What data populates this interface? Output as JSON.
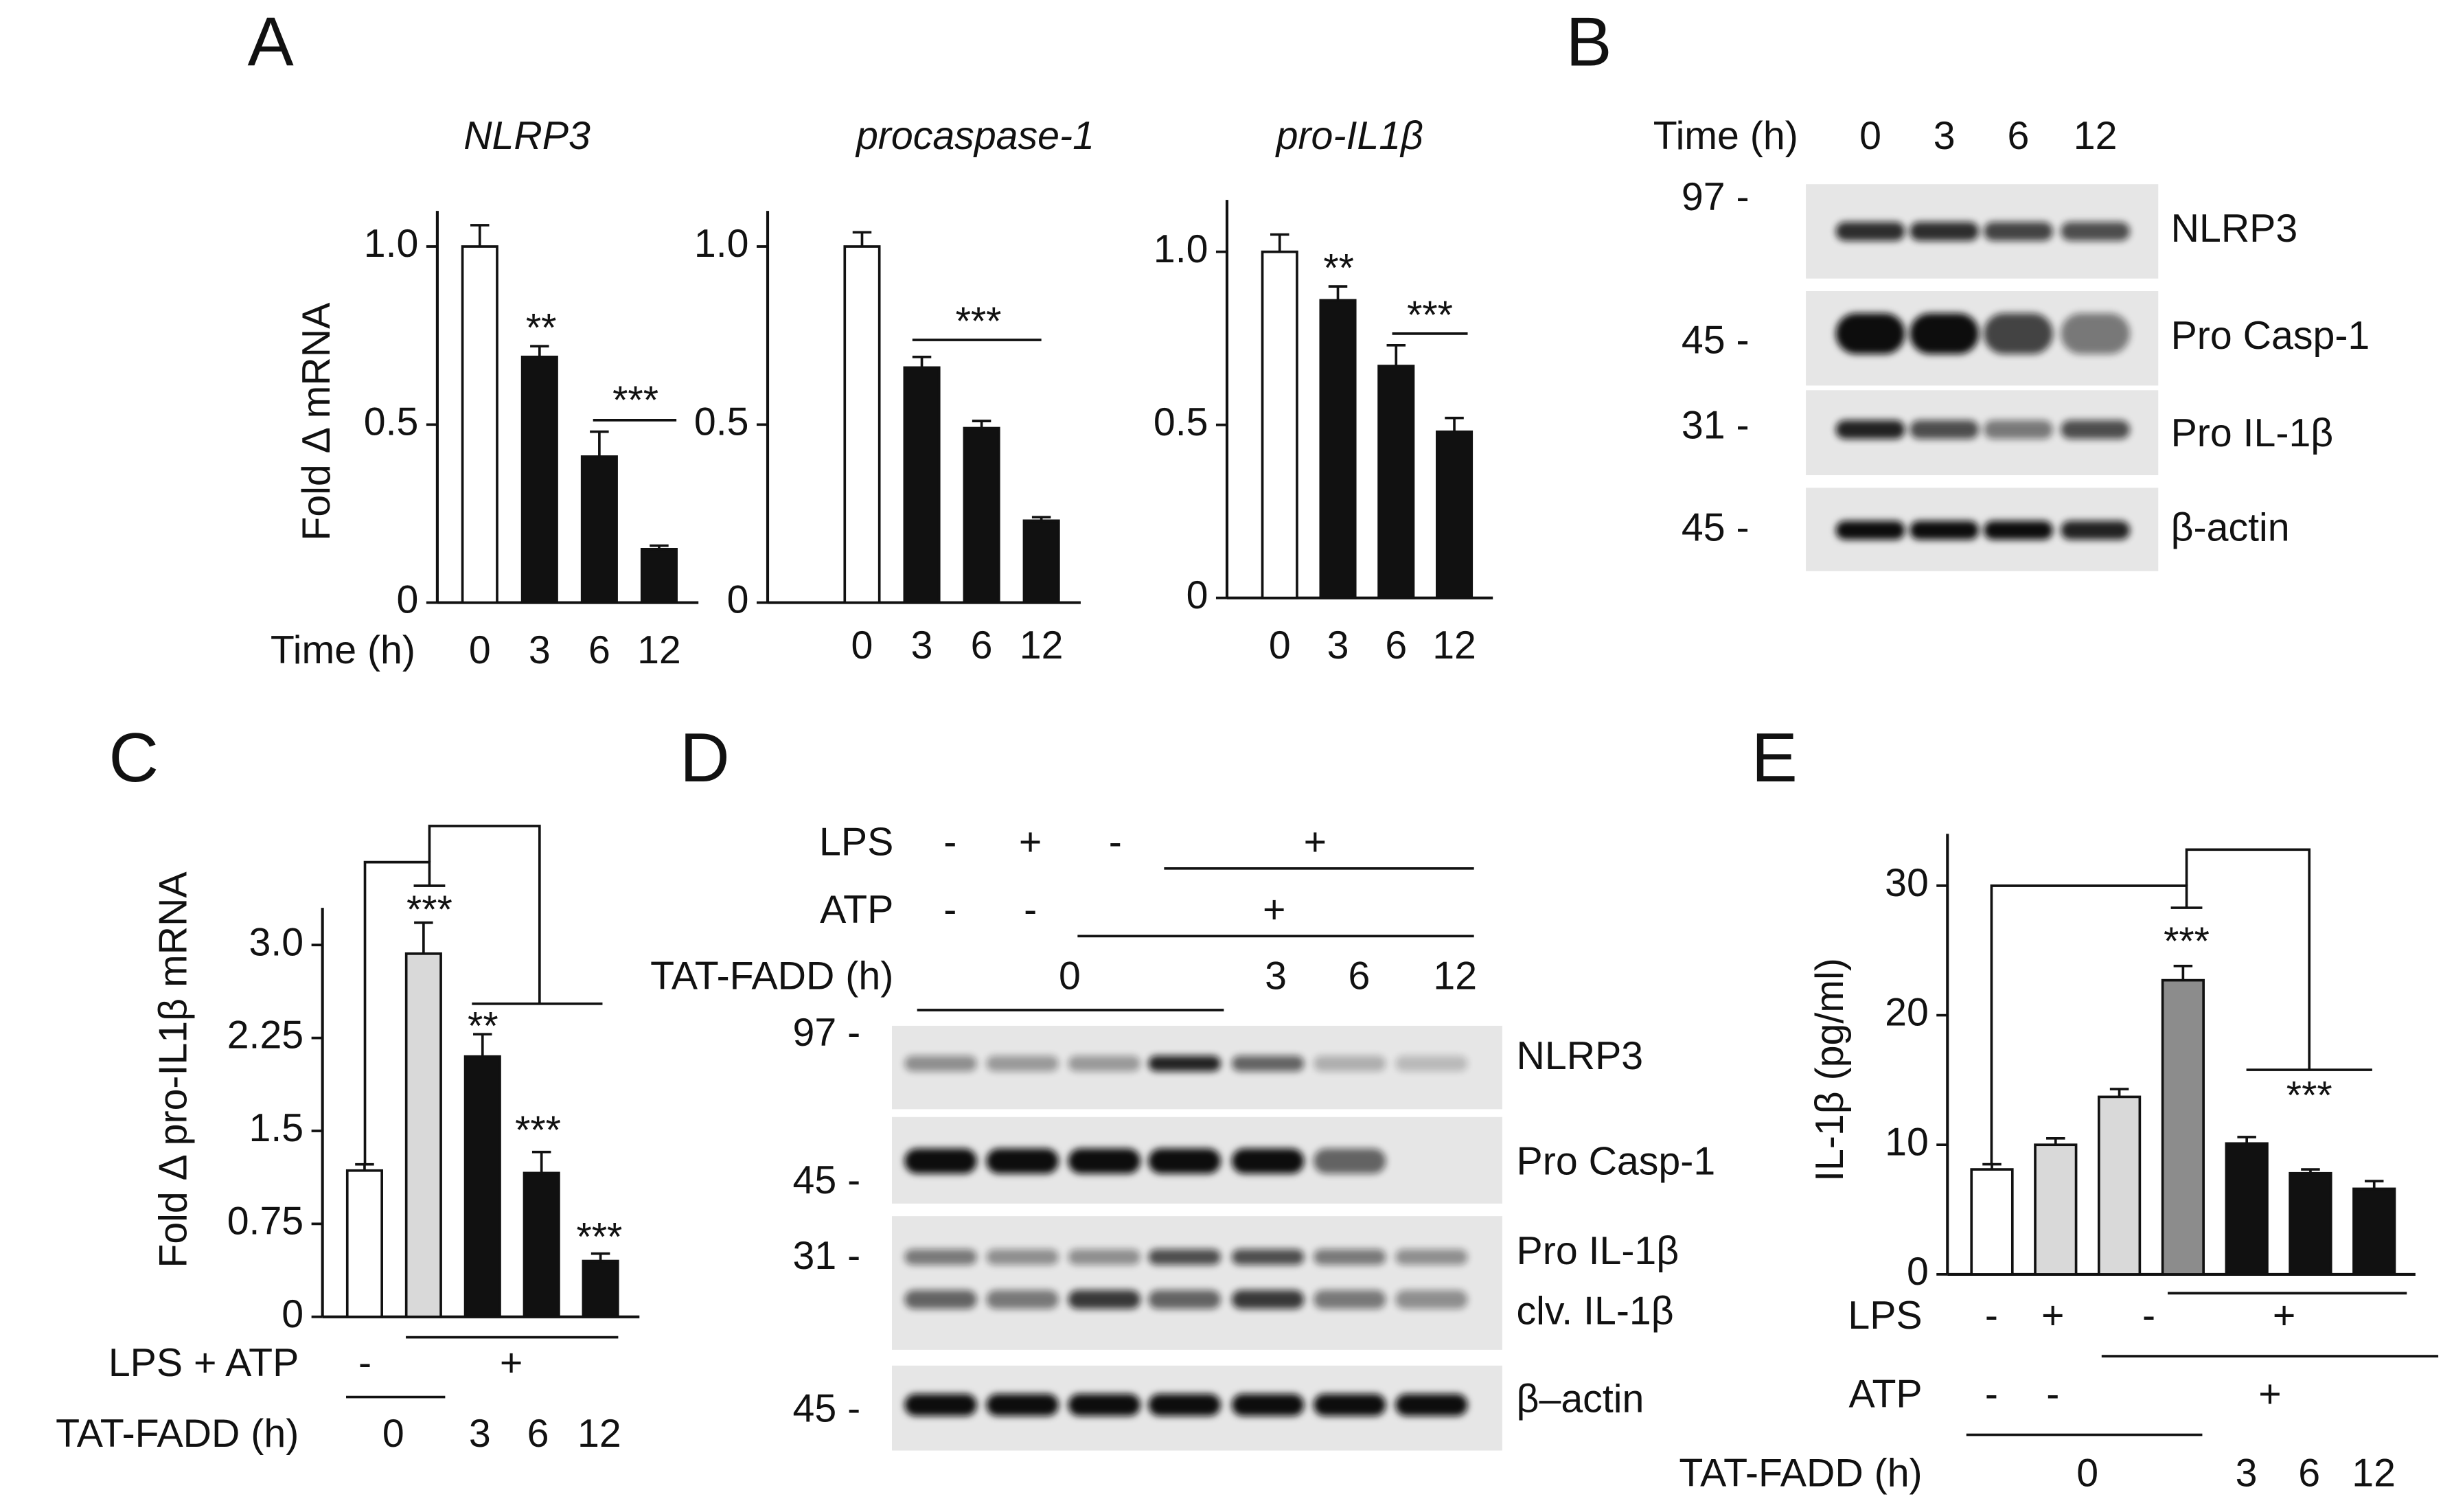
{
  "panel_labels": [
    "A",
    "B",
    "C",
    "D",
    "E"
  ],
  "chart_data": [
    {
      "type": "bar",
      "title": "NLRP3",
      "y_label": "Fold Δ mRNA",
      "x_label": "Time (h)",
      "categories": [
        "0",
        "3",
        "6",
        "12"
      ],
      "values": [
        1.0,
        0.69,
        0.41,
        0.15
      ],
      "errors": [
        0.06,
        0.03,
        0.07,
        0.01
      ],
      "colors": [
        "#ffffff",
        "#111111",
        "#111111",
        "#111111"
      ],
      "ylim": [
        0,
        1.1
      ],
      "yticks": [
        0,
        0.5,
        {
          "value": 1,
          "label": "1.0"
        }
      ],
      "annotations": [
        "**",
        "***"
      ]
    },
    {
      "type": "bar",
      "title": "procaspase-1",
      "categories": [
        "0",
        "3",
        "6",
        "12"
      ],
      "values": [
        1.0,
        0.66,
        0.49,
        0.23
      ],
      "errors": [
        0.04,
        0.03,
        0.02,
        0.01
      ],
      "colors": [
        "#ffffff",
        "#111111",
        "#111111",
        "#111111"
      ],
      "ylim": [
        0,
        1.1
      ],
      "yticks": [
        0,
        0.5,
        {
          "value": 1,
          "label": "1.0"
        }
      ],
      "annotations": [
        "***"
      ]
    },
    {
      "type": "bar",
      "title": "pro-IL1β",
      "categories": [
        "0",
        "3",
        "6",
        "12"
      ],
      "values": [
        1.0,
        0.86,
        0.67,
        0.48
      ],
      "errors": [
        0.05,
        0.04,
        0.06,
        0.04
      ],
      "colors": [
        "#ffffff",
        "#111111",
        "#111111",
        "#111111"
      ],
      "ylim": [
        0,
        1.15
      ],
      "yticks": [
        0,
        0.5,
        {
          "value": 1,
          "label": "1.0"
        }
      ],
      "annotations": [
        "**",
        "***"
      ]
    },
    {
      "type": "bar",
      "y_label": "Fold Δ pro-IL1β mRNA",
      "categories": [
        null,
        null,
        null,
        null,
        null
      ],
      "values": [
        1.18,
        2.93,
        2.1,
        1.16,
        0.45
      ],
      "errors": [
        0.05,
        0.25,
        0.18,
        0.17,
        0.06
      ],
      "colors": [
        "#ffffff",
        "#d9d9d9",
        "#111111",
        "#111111",
        "#111111"
      ],
      "ylim": [
        0,
        3.3
      ],
      "yticks": [
        0,
        0.75,
        1.5,
        2.25,
        {
          "value": 3,
          "label": "3.0"
        }
      ],
      "annotations": [
        "***",
        "**",
        "***",
        "***"
      ],
      "conditions": [
        {
          "label": "LPS + ATP",
          "values": [
            "-",
            "+"
          ]
        },
        {
          "label": "TAT-FADD (h)",
          "values": [
            "0",
            "3",
            "6",
            "12"
          ]
        }
      ]
    },
    {
      "type": "bar",
      "y_label": "IL-1β (pg/ml)",
      "categories": [
        null,
        null,
        null,
        null,
        null,
        null,
        null
      ],
      "values": [
        8.1,
        10.0,
        13.7,
        22.7,
        10.1,
        7.8,
        6.6
      ],
      "errors": [
        0.4,
        0.5,
        0.6,
        1.1,
        0.5,
        0.3,
        0.6
      ],
      "colors": [
        "#ffffff",
        "#d9d9d9",
        "#d9d9d9",
        "#8c8c8c",
        "#111111",
        "#111111",
        "#111111"
      ],
      "ylim": [
        0,
        34
      ],
      "yticks": [
        0,
        10,
        20,
        30
      ],
      "annotations": [
        "***",
        "***"
      ],
      "conditions": [
        {
          "label": "LPS",
          "values": [
            "-",
            "+",
            "-",
            "+"
          ]
        },
        {
          "label": "ATP",
          "values": [
            "-",
            "-",
            "+"
          ]
        },
        {
          "label": "TAT-FADD (h)",
          "values": [
            "0",
            "3",
            "6",
            "12"
          ]
        }
      ]
    }
  ],
  "blot_B": {
    "header_label": "Time (h)",
    "lanes": [
      "0",
      "3",
      "6",
      "12"
    ],
    "markers": [
      "97 -",
      "45 -",
      "31 -",
      "45 -"
    ],
    "bands": [
      "NLRP3",
      "Pro Casp-1",
      "Pro IL-1β",
      "β-actin"
    ]
  },
  "blot_D": {
    "conditions": [
      {
        "label": "LPS",
        "values": [
          "-",
          "+",
          "-",
          "+"
        ]
      },
      {
        "label": "ATP",
        "values": [
          "-",
          "-",
          "+"
        ]
      },
      {
        "label": "TAT-FADD (h)",
        "values": [
          "0",
          "3",
          "6",
          "12"
        ]
      }
    ],
    "markers": [
      "97 -",
      "45 -",
      "31 -",
      "45 -"
    ],
    "bands": [
      "NLRP3",
      "Pro Casp-1",
      "Pro IL-1β",
      "clv. IL-1β",
      "β–actin"
    ]
  }
}
